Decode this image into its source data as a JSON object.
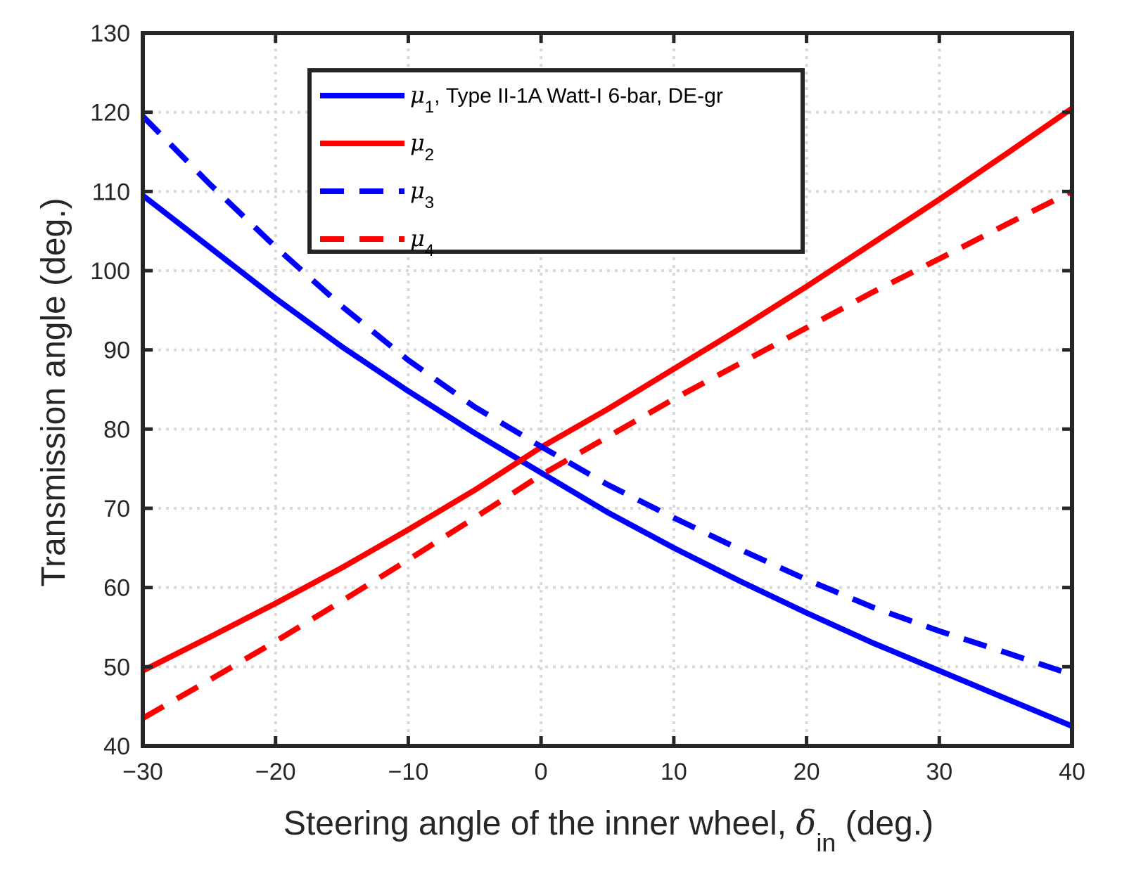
{
  "chart_data": {
    "type": "line",
    "title": "",
    "xlabel": {
      "main": "Steering angle of the inner wheel, ",
      "symbol": "δ",
      "subscript": "in",
      "unit": " (deg.)"
    },
    "ylabel": "Transmission angle (deg.)",
    "xlim": [
      -30,
      40
    ],
    "ylim": [
      40,
      130
    ],
    "xticks": [
      -30,
      -20,
      -10,
      0,
      10,
      20,
      30,
      40
    ],
    "xtick_labels": [
      "−30",
      "−20",
      "−10",
      "0",
      "10",
      "20",
      "30",
      "40"
    ],
    "yticks": [
      40,
      50,
      60,
      70,
      80,
      90,
      100,
      110,
      120,
      130
    ],
    "ytick_labels": [
      "40",
      "50",
      "60",
      "70",
      "80",
      "90",
      "100",
      "110",
      "120",
      "130"
    ],
    "grid": true,
    "legend_position": "top-center",
    "x": [
      -30,
      -25,
      -20,
      -15,
      -10,
      -5,
      0,
      5,
      10,
      15,
      20,
      25,
      30,
      35,
      40
    ],
    "series": [
      {
        "name": "mu1",
        "symbol": "μ",
        "subscript": "1",
        "suffix": ", Type II-1A Watt-I 6-bar, DE-gr",
        "color": "#0000ff",
        "style": "solid",
        "values": [
          109.5,
          103.0,
          96.5,
          90.4,
          84.8,
          79.5,
          74.5,
          69.5,
          65.0,
          60.8,
          56.8,
          53.0,
          49.5,
          46.0,
          42.5
        ]
      },
      {
        "name": "mu2",
        "symbol": "μ",
        "subscript": "2",
        "suffix": "",
        "color": "#ff0000",
        "style": "solid",
        "values": [
          49.5,
          53.7,
          58.0,
          62.5,
          67.3,
          72.3,
          77.7,
          82.5,
          87.6,
          92.7,
          98.0,
          103.5,
          109.0,
          114.7,
          120.5
        ]
      },
      {
        "name": "mu3",
        "symbol": "μ",
        "subscript": "3",
        "suffix": "",
        "color": "#0000ff",
        "style": "dashed",
        "values": [
          119.5,
          111.0,
          103.0,
          95.5,
          88.7,
          82.8,
          77.8,
          73.0,
          68.8,
          64.8,
          61.0,
          57.5,
          54.5,
          51.8,
          49.0
        ]
      },
      {
        "name": "mu4",
        "symbol": "μ",
        "subscript": "4",
        "suffix": "",
        "color": "#ff0000",
        "style": "dashed",
        "values": [
          43.5,
          48.3,
          53.2,
          58.3,
          63.5,
          68.8,
          74.2,
          79.0,
          83.8,
          88.3,
          92.8,
          97.3,
          101.5,
          105.8,
          110.0
        ]
      }
    ]
  }
}
